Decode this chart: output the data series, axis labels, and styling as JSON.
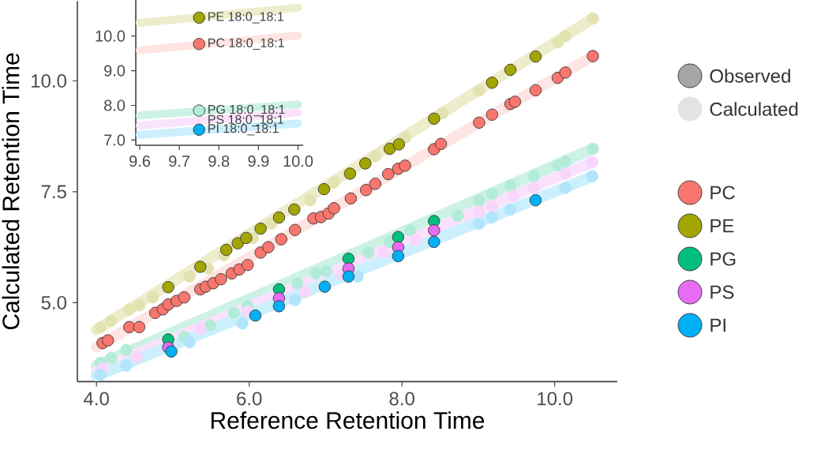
{
  "chart_data": [
    {
      "type": "scatter",
      "xlabel": "Reference Retention Time",
      "ylabel": "Calculated Retention Time",
      "xlim": [
        3.75,
        10.82
      ],
      "ylim": [
        3.22,
        11.8
      ],
      "xticks": [
        {
          "value": 4,
          "label": "4.0"
        },
        {
          "value": 6,
          "label": "6.0"
        },
        {
          "value": 8,
          "label": "8.0"
        },
        {
          "value": 10,
          "label": "10.0"
        }
      ],
      "yticks": [
        {
          "value": 5,
          "label": "5.0"
        },
        7.5,
        {
          "value": 10,
          "label": "10.0"
        }
      ],
      "legend": "right",
      "marker": "circle",
      "annotations": [
        "Observed",
        "Calculated"
      ],
      "series": [
        {
          "type": "line",
          "marker": "none",
          "color": "#EDEDCC",
          "x": [
            4.0,
            10.5
          ],
          "values": [
            4.39,
            11.41
          ]
        },
        {
          "type": "line",
          "marker": "none",
          "color": "#FEE4E2",
          "x": [
            4.0,
            10.5
          ],
          "values": [
            4.0,
            10.56
          ]
        },
        {
          "type": "line",
          "marker": "none",
          "color": "#CCF2E5",
          "x": [
            4.0,
            10.5
          ],
          "values": [
            3.58,
            8.47
          ]
        },
        {
          "type": "line",
          "marker": "none",
          "color": "#FAE2FD",
          "x": [
            4.0,
            10.5
          ],
          "values": [
            3.46,
            8.17
          ]
        },
        {
          "type": "line",
          "marker": "none",
          "color": "#CCEFFD",
          "x": [
            4.0,
            10.5
          ],
          "values": [
            3.35,
            7.85
          ]
        },
        {
          "type": "scatter",
          "color": "#E3E3B2",
          "x": [
            4.05,
            4.19,
            4.43,
            4.56,
            4.74,
            5.22,
            5.46,
            5.67,
            6.05,
            6.29,
            6.8,
            7.01,
            7.11,
            7.65,
            8.04,
            8.53,
            9.01,
            10.04,
            10.14,
            10.5
          ],
          "values": [
            4.44,
            4.59,
            4.85,
            4.94,
            5.12,
            5.59,
            5.77,
            6.07,
            6.46,
            6.78,
            7.31,
            null,
            7.71,
            8.3,
            8.72,
            9.27,
            9.78,
            10.87,
            11.01,
            11.41
          ]
        },
        {
          "type": "scatter",
          "color": "#B2ECD8",
          "x": [
            4.05,
            4.19,
            4.39,
            5.15,
            5.49,
            5.8,
            5.98,
            6.63,
            6.87,
            7.01,
            7.56,
            7.84,
            8.11,
            8.73,
            9.01,
            9.18,
            9.42,
            9.73,
            10.04,
            10.14,
            10.5
          ],
          "values": [
            3.64,
            3.75,
            3.93,
            4.23,
            4.49,
            4.77,
            4.92,
            5.44,
            5.66,
            5.71,
            6.13,
            6.37,
            6.63,
            6.96,
            7.3,
            7.45,
            7.64,
            7.86,
            8.1,
            8.18,
            8.47
          ]
        },
        {
          "type": "scatter",
          "color": "#F8D6FB",
          "x": [
            4.08,
            4.53,
            5.36,
            5.98,
            6.73,
            7.22,
            7.77,
            8.18,
            9.01,
            9.18,
            9.46,
            9.73,
            10.14,
            10.49
          ],
          "values": [
            3.52,
            3.78,
            4.41,
            4.8,
            5.24,
            5.63,
            6.13,
            6.42,
            7.04,
            7.17,
            7.41,
            7.59,
            7.91,
            8.17
          ]
        },
        {
          "type": "scatter",
          "color": "#B2E5FC",
          "x": [
            4.05,
            4.39,
            5.22,
            5.91,
            6.6,
            7.42,
            7.97,
            9.01,
            9.18,
            9.42,
            10.14,
            10.49
          ],
          "values": [
            3.38,
            3.58,
            4.11,
            4.53,
            5.06,
            5.59,
            null,
            6.78,
            6.92,
            7.1,
            7.59,
            7.85
          ]
        },
        {
          "type": "scatter",
          "name": "PC",
          "color": "#F8766D",
          "x": [
            4.08,
            4.15,
            4.43,
            4.56,
            4.77,
            4.87,
            4.94,
            5.05,
            5.15,
            5.36,
            5.43,
            5.53,
            5.63,
            5.77,
            5.87,
            5.98,
            6.15,
            6.25,
            6.42,
            6.6,
            6.84,
            6.94,
            7.04,
            7.11,
            7.33,
            7.53,
            7.65,
            7.82,
            7.95,
            8.04,
            8.42,
            8.51,
            9.01,
            9.18,
            9.42,
            9.48,
            9.75,
            10.04,
            10.14,
            10.5
          ],
          "values": [
            4.09,
            4.15,
            4.45,
            4.45,
            4.77,
            4.85,
            4.96,
            5.04,
            5.12,
            5.3,
            5.36,
            5.44,
            5.53,
            5.66,
            5.75,
            5.85,
            6.13,
            6.25,
            6.43,
            6.64,
            6.9,
            6.93,
            7.01,
            7.13,
            7.35,
            7.54,
            7.68,
            7.9,
            8.02,
            8.09,
            8.46,
            8.58,
            9.06,
            9.24,
            9.48,
            9.53,
            9.79,
            10.07,
            10.19,
            10.56
          ]
        },
        {
          "type": "scatter",
          "name": "PE",
          "color": "#A3A500",
          "x": [
            4.94,
            5.36,
            5.7,
            5.85,
            5.96,
            6.15,
            6.39,
            6.59,
            6.98,
            7.32,
            7.52,
            7.84,
            7.96,
            8.42,
            9.18,
            9.42,
            9.75
          ],
          "values": [
            5.35,
            5.81,
            6.19,
            6.34,
            6.46,
            6.67,
            6.92,
            7.1,
            7.56,
            7.91,
            8.14,
            8.47,
            8.57,
            9.15,
            9.96,
            10.25,
            10.55
          ]
        },
        {
          "type": "scatter",
          "name": "PG",
          "color": "#00BF7D",
          "x": [
            4.94,
            6.39,
            7.3,
            7.95,
            8.42
          ],
          "values": [
            4.17,
            5.3,
            5.99,
            6.48,
            6.84
          ]
        },
        {
          "type": "scatter",
          "name": "PS",
          "color": "#E76BF3",
          "x": [
            4.94,
            6.39,
            7.3,
            7.95,
            8.42
          ],
          "values": [
            3.99,
            5.1,
            5.77,
            6.25,
            6.63
          ]
        },
        {
          "type": "scatter",
          "name": "PI",
          "color": "#00B0F6",
          "x": [
            4.98,
            6.08,
            6.39,
            6.99,
            7.3,
            7.95,
            8.42,
            9.75
          ],
          "values": [
            3.9,
            4.71,
            4.92,
            5.36,
            5.59,
            6.05,
            6.37,
            7.31
          ]
        }
      ]
    },
    {
      "type": "scatter",
      "xlim": [
        9.59,
        10.013
      ],
      "ylim": [
        6.85,
        11.04
      ],
      "xticks": [
        9.6,
        9.7,
        9.8,
        9.9,
        {
          "value": 10,
          "label": "10.0"
        }
      ],
      "yticks": [
        {
          "value": 7,
          "label": "7.0"
        },
        {
          "value": 8,
          "label": "8.0"
        },
        {
          "value": 9,
          "label": "9.0"
        },
        {
          "value": 10,
          "label": "10.0"
        }
      ],
      "marker": "circle",
      "annotations": [
        {
          "text": "PS 18:0_18:1",
          "x": 9.75,
          "y": 7.56
        }
      ],
      "series": [
        {
          "type": "line",
          "marker": "none",
          "color": "#EDEDCC",
          "x": [
            9.6,
            10.0
          ],
          "values": [
            10.38,
            10.82
          ]
        },
        {
          "type": "line",
          "marker": "none",
          "color": "#FEE4E2",
          "x": [
            9.6,
            10.0
          ],
          "values": [
            9.59,
            10.02
          ]
        },
        {
          "type": "line",
          "marker": "none",
          "color": "#CCF2E5",
          "x": [
            9.6,
            10.0
          ],
          "values": [
            7.71,
            8.03
          ]
        },
        {
          "type": "line",
          "marker": "none",
          "color": "#FAE2FD",
          "x": [
            9.6,
            10.0
          ],
          "values": [
            7.42,
            7.79
          ]
        },
        {
          "type": "line",
          "marker": "none",
          "color": "#CCEFFD",
          "x": [
            9.6,
            10.0
          ],
          "values": [
            7.15,
            7.48
          ]
        },
        {
          "type": "scatter",
          "name": "PE 18:0_18:1",
          "color": "#A3A500",
          "x": [
            9.75
          ],
          "values": [
            10.53
          ]
        },
        {
          "type": "scatter",
          "name": "PC 18:0_18:1",
          "color": "#F8766D",
          "x": [
            9.75
          ],
          "values": [
            9.77
          ]
        },
        {
          "type": "scatter",
          "name": "PG 18:0_18:1",
          "color": "#B2ECD8",
          "x": [
            9.75
          ],
          "values": [
            7.85
          ]
        },
        {
          "type": "scatter",
          "name": "PI 18:0_18:1",
          "color": "#00B0F6",
          "x": [
            9.75
          ],
          "values": [
            7.3
          ]
        }
      ]
    }
  ]
}
